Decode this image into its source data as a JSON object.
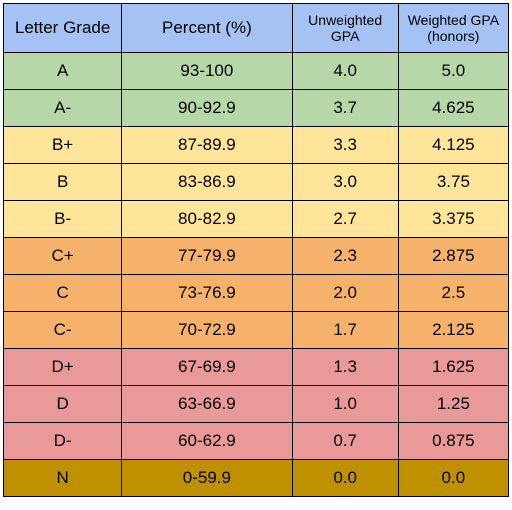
{
  "headers": {
    "letter_grade": "Letter Grade",
    "percent": "Percent (%)",
    "unweighted_line1": "Unweighted",
    "unweighted_line2": "GPA",
    "weighted_line1": "Weighted GPA",
    "weighted_line2": "(honors)"
  },
  "colors": {
    "header": "#a4c2f4",
    "green": "#b6d7a8",
    "yellow": "#ffe599",
    "orange": "#f6b26b",
    "red": "#ea9999",
    "dark_gold": "#bf9000"
  },
  "rows": [
    {
      "grade": "A",
      "percent": "93-100",
      "unweighted": "4.0",
      "weighted": "5.0",
      "color": "#b6d7a8"
    },
    {
      "grade": "A-",
      "percent": "90-92.9",
      "unweighted": "3.7",
      "weighted": "4.625",
      "color": "#b6d7a8"
    },
    {
      "grade": "B+",
      "percent": "87-89.9",
      "unweighted": "3.3",
      "weighted": "4.125",
      "color": "#ffe599"
    },
    {
      "grade": "B",
      "percent": "83-86.9",
      "unweighted": "3.0",
      "weighted": "3.75",
      "color": "#ffe599"
    },
    {
      "grade": "B-",
      "percent": "80-82.9",
      "unweighted": "2.7",
      "weighted": "3.375",
      "color": "#ffe599"
    },
    {
      "grade": "C+",
      "percent": "77-79.9",
      "unweighted": "2.3",
      "weighted": "2.875",
      "color": "#f6b26b"
    },
    {
      "grade": "C",
      "percent": "73-76.9",
      "unweighted": "2.0",
      "weighted": "2.5",
      "color": "#f6b26b"
    },
    {
      "grade": "C-",
      "percent": "70-72.9",
      "unweighted": "1.7",
      "weighted": "2.125",
      "color": "#f6b26b"
    },
    {
      "grade": "D+",
      "percent": "67-69.9",
      "unweighted": "1.3",
      "weighted": "1.625",
      "color": "#ea9999"
    },
    {
      "grade": "D",
      "percent": "63-66.9",
      "unweighted": "1.0",
      "weighted": "1.25",
      "color": "#ea9999"
    },
    {
      "grade": "D-",
      "percent": "60-62.9",
      "unweighted": "0.7",
      "weighted": "0.875",
      "color": "#ea9999"
    },
    {
      "grade": "N",
      "percent": "0-59.9",
      "unweighted": "0.0",
      "weighted": "0.0",
      "color": "#bf9000"
    }
  ]
}
